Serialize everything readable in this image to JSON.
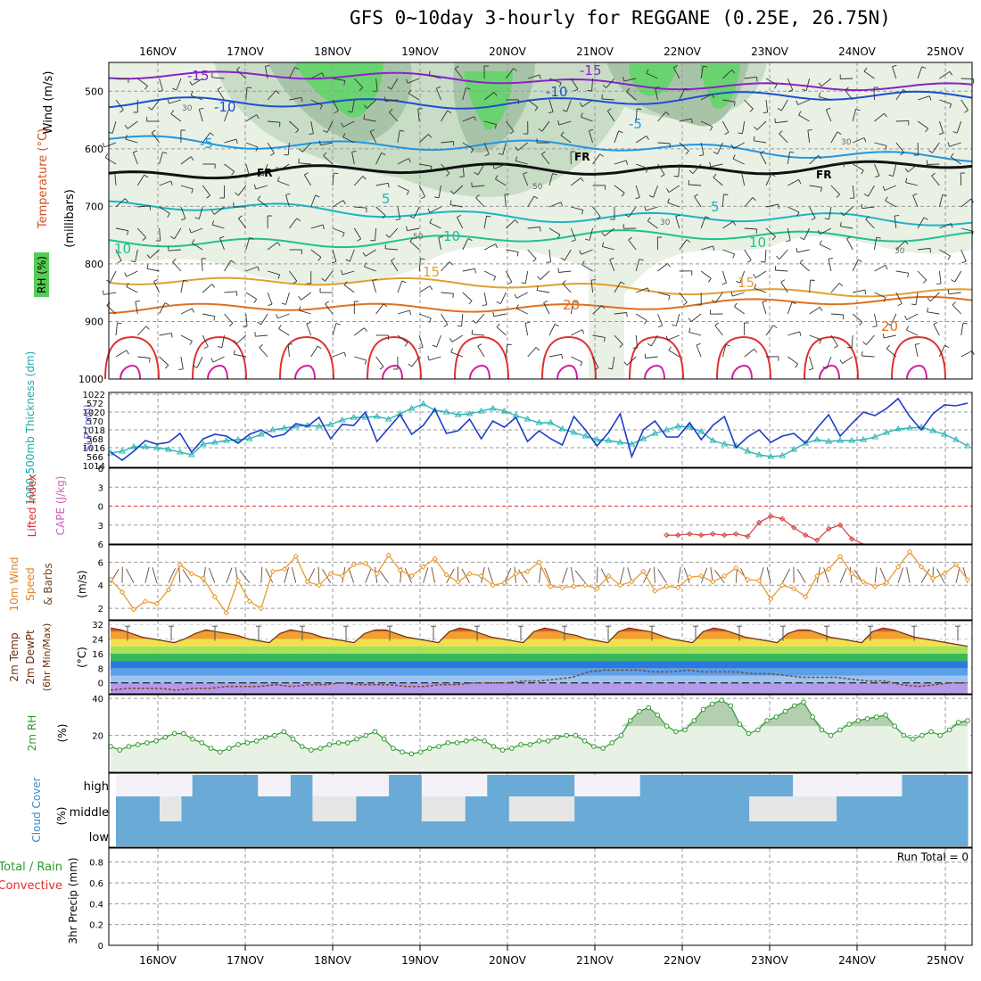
{
  "title": "GFS 0~10day 3-hourly for REGGANE (0.25E, 26.75N)",
  "days": [
    "16NOV",
    "17NOV",
    "18NOV",
    "19NOV",
    "20NOV",
    "21NOV",
    "22NOV",
    "23NOV",
    "24NOV",
    "25NOV"
  ],
  "run_total": "Run Total = 0",
  "panels": {
    "upper": {
      "ylabel_wind": "Wind (m/s)",
      "ylabel_temp": "Temperature (°C)",
      "ylabel_mb": "(millibars)",
      "ylabel_rh": "RH (%)",
      "pressure_ticks": [
        "500",
        "600",
        "700",
        "800",
        "900",
        "1000"
      ],
      "fr_label": "FR",
      "rh_label": "30",
      "rh_label2": "50"
    },
    "thick": {
      "ylabel_thick": "1000-500mb Thickness (dm)",
      "ylabel_slp": "SLP (mb)",
      "left_ticks": [
        "572",
        "570",
        "568",
        "566"
      ],
      "right_ticks": [
        "1022",
        "1020",
        "1018",
        "1016",
        "1014"
      ]
    },
    "cape": {
      "ylabel_li": "Lifted Index",
      "ylabel_cape": "CAPE (J/kg)",
      "ticks": [
        "6",
        "3",
        "0",
        "3",
        "6"
      ]
    },
    "wind10": {
      "ylabel1": "10m Wind",
      "ylabel2": "Speed",
      "ylabel3": "& Barbs",
      "unit": "(m/s)",
      "ticks": [
        "6",
        "4",
        "2"
      ]
    },
    "temp2m": {
      "ylabel1": "2m Temp",
      "ylabel2": "2m DewPt",
      "ylabel3": "(6hr Min/Max)",
      "unit": "(°C)",
      "ticks": [
        "32",
        "24",
        "16",
        "8",
        "0"
      ]
    },
    "rh2m": {
      "ylabel": "2m RH",
      "unit": "(%)",
      "ticks": [
        "40",
        "20"
      ]
    },
    "cloud": {
      "ylabel": "Cloud Cover",
      "unit": "(%)",
      "levels": [
        "high",
        "middle",
        "low"
      ]
    },
    "precip": {
      "ylabel1": "Total / Rain",
      "ylabel2": "Convective",
      "ylabel3": "3hr Precip (mm)",
      "ticks": [
        "0.8",
        "0.6",
        "0.4",
        "0.2",
        "0"
      ]
    }
  },
  "colors": {
    "slp": "#1c3cc8",
    "thickness": "#2ab4b4",
    "wind": "#e89a32",
    "rh2m": "#2e9a2e",
    "cloud": "#6aaad6",
    "cape": "#d63c3c"
  },
  "chart_data": [
    {
      "type": "line",
      "title": "SLP / Thickness",
      "series": [
        {
          "name": "SLP (mb)",
          "values": [
            1015.5,
            1014.6,
            1015.6,
            1016.8,
            1016.4,
            1016.6,
            1017.6,
            1015.5,
            1017.0,
            1017.5,
            1017.3,
            1016.5,
            1017.5,
            1018.0,
            1017.2,
            1017.5,
            1018.7,
            1018.4,
            1019.4,
            1017.0,
            1018.6,
            1018.5,
            1020.0,
            1016.7,
            1018.2,
            1019.7,
            1017.5,
            1018.5,
            1020.3,
            1017.6,
            1017.9,
            1019.2,
            1017.0,
            1019.0,
            1018.3,
            1019.4,
            1016.7,
            1017.9,
            1017.0,
            1016.3,
            1019.5,
            1018.0,
            1016.2,
            1017.7,
            1019.8,
            1015.0,
            1018.0,
            1019.0,
            1017.2,
            1017.2,
            1018.8,
            1016.9,
            1018.5,
            1019.5,
            1016.0,
            1017.2,
            1018.0,
            1016.6,
            1017.3,
            1017.6,
            1016.5,
            1018.2,
            1019.7,
            1017.3,
            1018.7,
            1020.0,
            1019.6,
            1020.4,
            1021.5,
            1019.5,
            1018.0,
            1019.8,
            1020.8,
            1020.7,
            1021.0
          ]
        },
        {
          "name": "Thickness (dm)",
          "values": [
            566.4,
            566.6,
            567.1,
            567.1,
            567.0,
            566.8,
            566.5,
            566.2,
            567.4,
            567.6,
            567.8,
            567.9,
            568.0,
            568.5,
            569.0,
            569.2,
            569.4,
            569.5,
            569.4,
            569.6,
            570.1,
            570.4,
            570.4,
            570.5,
            570.2,
            570.8,
            571.4,
            571.9,
            571.2,
            571.0,
            570.7,
            570.8,
            571.1,
            571.4,
            571.1,
            570.6,
            570.2,
            569.8,
            569.8,
            569.1,
            568.7,
            568.3,
            567.9,
            567.8,
            567.6,
            567.4,
            568.0,
            568.6,
            569.0,
            569.4,
            569.3,
            568.8,
            567.8,
            567.4,
            567.2,
            566.6,
            566.2,
            566.0,
            566.1,
            566.8,
            567.5,
            567.9,
            567.7,
            567.8,
            567.8,
            567.9,
            568.2,
            568.7,
            569.1,
            569.2,
            569.3,
            568.9,
            568.5,
            567.9,
            567.2
          ]
        }
      ]
    },
    {
      "type": "line",
      "title": "CAPE / Lifted Index",
      "series": [
        {
          "name": "Lifted Index",
          "values": [
            8,
            8,
            8,
            8,
            8,
            8,
            8,
            8,
            8,
            8,
            8,
            8,
            8,
            8,
            8,
            8,
            8,
            8,
            8,
            8,
            8,
            8,
            8,
            8,
            8,
            8,
            8,
            8,
            8,
            8,
            8,
            8,
            8,
            8,
            8,
            8,
            8,
            8,
            8,
            8,
            8,
            8,
            8,
            8,
            8,
            8,
            8,
            8,
            4.6,
            4.6,
            4.4,
            4.6,
            4.4,
            4.6,
            4.4,
            4.8,
            2.6,
            1.6,
            2.0,
            3.4,
            4.6,
            5.4,
            3.6,
            3.0,
            5.2,
            8,
            8,
            8,
            8,
            8,
            8,
            8,
            8,
            8,
            8
          ]
        }
      ]
    },
    {
      "type": "line",
      "title": "10m Wind Speed",
      "series": [
        {
          "name": "Wind Speed (m/s)",
          "values": [
            4.5,
            3.4,
            1.9,
            2.6,
            2.4,
            3.6,
            5.8,
            5.0,
            4.6,
            3.0,
            1.6,
            4.4,
            2.6,
            2.0,
            5.2,
            5.4,
            6.5,
            4.3,
            4.0,
            5.0,
            4.8,
            5.8,
            5.9,
            5.0,
            6.6,
            5.3,
            4.8,
            5.6,
            6.3,
            4.9,
            4.3,
            5.0,
            4.8,
            4.0,
            4.2,
            5.0,
            5.2,
            6.0,
            3.9,
            3.8,
            3.9,
            4.0,
            3.7,
            4.8,
            4.0,
            4.3,
            5.2,
            3.5,
            3.9,
            3.8,
            4.7,
            4.8,
            4.3,
            4.8,
            5.5,
            4.5,
            4.4,
            2.8,
            4.0,
            3.7,
            3.0,
            4.8,
            5.4,
            6.5,
            5.0,
            4.3,
            3.9,
            4.2,
            5.6,
            6.9,
            5.6,
            4.6,
            5.0,
            5.8,
            4.5
          ]
        }
      ]
    },
    {
      "type": "line",
      "title": "2m Temp",
      "series": [
        {
          "name": "2m Temp (°C)",
          "values": [
            30,
            29,
            27,
            25,
            24,
            23,
            22,
            24,
            27,
            29,
            28,
            27,
            26,
            24,
            23,
            22,
            27,
            29,
            28,
            27,
            25,
            24,
            23,
            22,
            27,
            29,
            29,
            27,
            25,
            24,
            23,
            22,
            28,
            30,
            29,
            27,
            25,
            24,
            23,
            22,
            28,
            30,
            29,
            27,
            26,
            24,
            23,
            22,
            28,
            30,
            29,
            28,
            26,
            24,
            23,
            22,
            28,
            30,
            29,
            27,
            25,
            24,
            23,
            22,
            27,
            29,
            29,
            27,
            25,
            24,
            23,
            22,
            28,
            30,
            29,
            27,
            25,
            24,
            23,
            22,
            21,
            20
          ]
        },
        {
          "name": "2m DewPt (°C)",
          "values": [
            -4,
            -3,
            -3,
            -3,
            -4,
            -3,
            -3,
            -2,
            -2,
            -2,
            -1,
            -2,
            -1,
            -1,
            0,
            -1,
            -1,
            -1,
            -2,
            -2,
            -1,
            -1,
            0,
            0,
            0,
            1,
            1,
            2,
            3,
            6,
            7,
            7,
            7,
            6,
            6,
            7,
            6,
            6,
            6,
            5,
            5,
            4,
            3,
            3,
            3,
            2,
            1,
            1,
            -1,
            -2,
            -1,
            0,
            0
          ]
        }
      ]
    },
    {
      "type": "area",
      "title": "2m RH",
      "series": [
        {
          "name": "2m RH (%)",
          "values": [
            14,
            12,
            14,
            15,
            16,
            17,
            19,
            21,
            21,
            18,
            16,
            13,
            11,
            13,
            15,
            16,
            17,
            19,
            20,
            22,
            18,
            14,
            12,
            13,
            15,
            16,
            16,
            18,
            20,
            22,
            18,
            13,
            11,
            10,
            11,
            13,
            14,
            16,
            16,
            17,
            18,
            17,
            14,
            12,
            13,
            15,
            15,
            17,
            17,
            19,
            20,
            20,
            17,
            14,
            13,
            16,
            20,
            28,
            33,
            35,
            31,
            25,
            22,
            23,
            28,
            34,
            37,
            39,
            36,
            26,
            21,
            23,
            28,
            30,
            33,
            36,
            38,
            30,
            23,
            20,
            23,
            26,
            28,
            29,
            30,
            31,
            25,
            20,
            18,
            20,
            22,
            20,
            23,
            27,
            28
          ]
        }
      ]
    },
    {
      "type": "heatmap",
      "title": "Cloud Cover",
      "series": [
        {
          "name": "high",
          "values": [
            0,
            0,
            0,
            0,
            0,
            0,
            0,
            1,
            1,
            1,
            1,
            1,
            1,
            0,
            0,
            0,
            1,
            1,
            0,
            0,
            0,
            0,
            0,
            0,
            0,
            1,
            1,
            1,
            0,
            0,
            0,
            0,
            0,
            0,
            1,
            1,
            1,
            1,
            1,
            1,
            1,
            1,
            0,
            0,
            0,
            0,
            0,
            0,
            1,
            1,
            1,
            1,
            1,
            1,
            1,
            1,
            1,
            1,
            1,
            1,
            1,
            1,
            0,
            0,
            0,
            0,
            0,
            0,
            0,
            0,
            0,
            0,
            1,
            1,
            1,
            1,
            1,
            1
          ]
        },
        {
          "name": "middle",
          "values": [
            1,
            1,
            1,
            1,
            0,
            0,
            1,
            1,
            1,
            1,
            1,
            1,
            1,
            1,
            1,
            1,
            1,
            1,
            0,
            0,
            0,
            0,
            1,
            1,
            1,
            1,
            1,
            1,
            0,
            0,
            0,
            0,
            1,
            1,
            1,
            1,
            0,
            0,
            0,
            0,
            0,
            0,
            1,
            1,
            1,
            1,
            1,
            1,
            1,
            1,
            1,
            1,
            1,
            1,
            1,
            1,
            1,
            1,
            0,
            0,
            0,
            0,
            0,
            0,
            0,
            0,
            1,
            1,
            1,
            1,
            1,
            1,
            1,
            1,
            1,
            1,
            1,
            1
          ]
        },
        {
          "name": "low",
          "values": [
            1,
            1,
            1,
            1,
            1,
            1,
            1,
            1,
            1,
            1,
            1,
            1,
            1,
            1,
            1,
            1,
            1,
            1,
            1,
            1,
            1,
            1,
            1,
            1,
            1,
            1,
            1,
            1,
            1,
            1,
            1,
            1,
            1,
            1,
            1,
            1,
            1,
            1,
            1,
            1,
            1,
            1,
            1,
            1,
            1,
            1,
            1,
            1,
            1,
            1,
            1,
            1,
            1,
            1,
            1,
            1,
            1,
            1,
            1,
            1,
            1,
            1,
            1,
            1,
            1,
            1,
            1,
            1,
            1,
            1,
            1,
            1,
            1,
            1,
            1,
            1,
            1,
            1
          ]
        }
      ]
    },
    {
      "type": "bar",
      "title": "3hr Precip",
      "series": [
        {
          "name": "3hr Precip (mm)",
          "values": [
            0,
            0,
            0,
            0,
            0,
            0,
            0,
            0,
            0,
            0
          ]
        }
      ]
    }
  ]
}
